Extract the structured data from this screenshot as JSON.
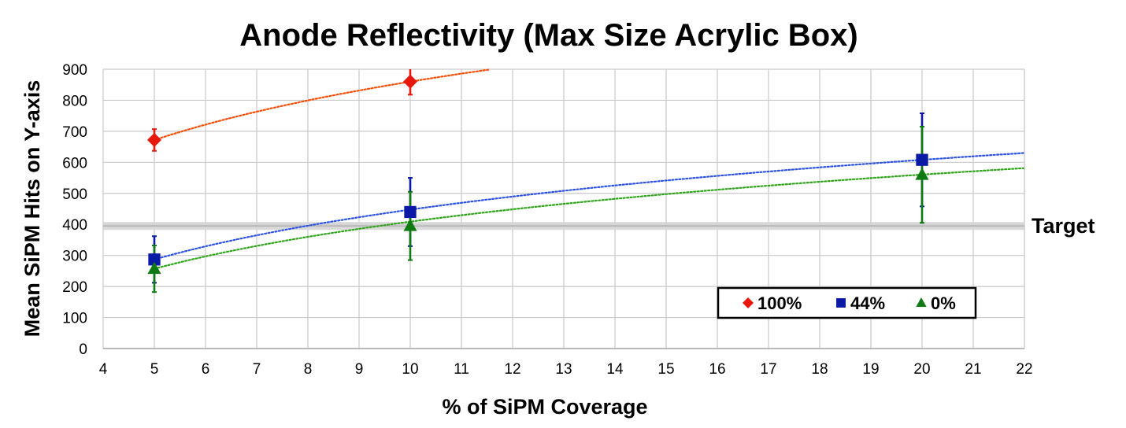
{
  "chart_data": {
    "type": "scatter",
    "title": "Anode Reflectivity (Max Size Acrylic Box)",
    "xlabel": "% of SiPM Coverage",
    "ylabel": "Mean SiPM Hits on Y-axis",
    "xlim": [
      4,
      22
    ],
    "ylim": [
      0,
      900
    ],
    "x_ticks": [
      4,
      5,
      6,
      7,
      8,
      9,
      10,
      11,
      12,
      13,
      14,
      15,
      16,
      17,
      18,
      19,
      20,
      21,
      22
    ],
    "y_ticks": [
      0,
      100,
      200,
      300,
      400,
      500,
      600,
      700,
      800,
      900
    ],
    "grid": true,
    "legend_position": "bottom-right",
    "target": {
      "label": "Target",
      "value": 395
    },
    "series": [
      {
        "name": "100%",
        "marker": "diamond",
        "color": "#e8170c",
        "trend_color": "#ff4a00",
        "points": [
          {
            "x": 5,
            "y": 672,
            "err_low": 35,
            "err_high": 35
          },
          {
            "x": 10,
            "y": 860,
            "err_low": 42,
            "err_high": 42
          }
        ],
        "trendline": {
          "type": "log",
          "a": 672,
          "b": 271.2
        }
      },
      {
        "name": "44%",
        "marker": "square",
        "color": "#0a1aa6",
        "trend_color": "#2c52e8",
        "points": [
          {
            "x": 5,
            "y": 287,
            "err_low": 75,
            "err_high": 75
          },
          {
            "x": 10,
            "y": 440,
            "err_low": 110,
            "err_high": 110
          },
          {
            "x": 20,
            "y": 608,
            "err_low": 150,
            "err_high": 150
          }
        ],
        "trendline": {
          "type": "log",
          "a": 287,
          "b": 231.6
        }
      },
      {
        "name": "0%",
        "marker": "triangle",
        "color": "#0f7a12",
        "trend_color": "#2fa51a",
        "points": [
          {
            "x": 5,
            "y": 257,
            "err_low": 75,
            "err_high": 75
          },
          {
            "x": 10,
            "y": 395,
            "err_low": 110,
            "err_high": 110
          },
          {
            "x": 20,
            "y": 560,
            "err_low": 155,
            "err_high": 155
          }
        ],
        "trendline": {
          "type": "log",
          "a": 257,
          "b": 218.9
        }
      }
    ]
  }
}
